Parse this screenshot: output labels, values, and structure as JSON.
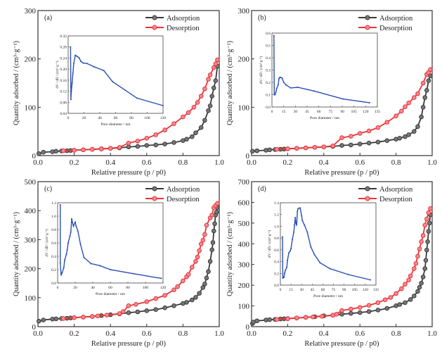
{
  "colors": {
    "adsorption": "#3a3a3a",
    "desorption": "#e8333a",
    "inset": "#2a4fb5"
  },
  "chart_data": [
    {
      "type": "line",
      "panel_label": "(a)",
      "xlabel": "Relative pressure (p / p0)",
      "ylabel": "Quantity adsorbed / (cm³·g⁻¹)",
      "xlim": [
        0,
        1
      ],
      "ylim": [
        0,
        300
      ],
      "xticks": [
        "0.0",
        "0.2",
        "0.4",
        "0.6",
        "0.8",
        "1.0"
      ],
      "yticks": [
        "0",
        "100",
        "200",
        "300"
      ],
      "legend": "top-right",
      "series": [
        {
          "name": "Adsorption",
          "x": [
            0.005,
            0.03,
            0.08,
            0.1,
            0.13,
            0.16,
            0.18,
            0.2,
            0.25,
            0.3,
            0.35,
            0.4,
            0.45,
            0.5,
            0.55,
            0.6,
            0.65,
            0.7,
            0.75,
            0.8,
            0.82,
            0.85,
            0.87,
            0.9,
            0.92,
            0.94,
            0.95,
            0.96,
            0.97,
            0.98,
            0.99
          ],
          "y": [
            4,
            7,
            8,
            9,
            9.5,
            10,
            10.5,
            11,
            12,
            13,
            14,
            15,
            16,
            18,
            19,
            21,
            22,
            24,
            27,
            31,
            34,
            39,
            47,
            58,
            73,
            93,
            103,
            123,
            140,
            155,
            185
          ]
        },
        {
          "name": "Desorption",
          "x": [
            0.14,
            0.2,
            0.25,
            0.3,
            0.35,
            0.4,
            0.45,
            0.5,
            0.55,
            0.6,
            0.65,
            0.7,
            0.75,
            0.8,
            0.83,
            0.86,
            0.88,
            0.9,
            0.92,
            0.94,
            0.95,
            0.97,
            0.98,
            0.99
          ],
          "y": [
            10,
            11,
            12,
            13,
            13.5,
            15,
            17,
            26,
            30,
            36,
            43,
            53,
            66,
            80,
            89,
            100,
            110,
            123,
            138,
            158,
            167,
            182,
            190,
            198
          ]
        }
      ],
      "inset": {
        "xlabel": "Pore diameter / nm",
        "ylabel": "dV / dD / (cm³·g⁻¹)",
        "xlim": [
          0,
          120
        ],
        "ylim": [
          0.04,
          0.32
        ],
        "xticks": [
          0,
          20,
          40,
          60,
          80,
          100,
          120
        ],
        "yticks": [
          0.04,
          0.08,
          0.12,
          0.16,
          0.2,
          0.24,
          0.28,
          0.32
        ],
        "ydigits": 2,
        "x": [
          3,
          3.5,
          4,
          5,
          6,
          7,
          9,
          10,
          12,
          14,
          16,
          19,
          24,
          33,
          45,
          56,
          87,
          120
        ],
        "y": [
          0.28,
          0.09,
          0.12,
          0.15,
          0.185,
          0.22,
          0.25,
          0.248,
          0.245,
          0.24,
          0.228,
          0.222,
          0.22,
          0.208,
          0.195,
          0.155,
          0.095,
          0.068
        ]
      }
    },
    {
      "type": "line",
      "panel_label": "(b)",
      "xlabel": "Relative pressure (p / p0)",
      "ylabel": "Quantity adsorbed / (cm³·g⁻¹)",
      "xlim": [
        0,
        1
      ],
      "ylim": [
        0,
        300
      ],
      "xticks": [
        "0.0",
        "0.2",
        "0.4",
        "0.6",
        "0.8",
        "1.0"
      ],
      "yticks": [
        "0",
        "100",
        "200",
        "300"
      ],
      "legend": "top-right",
      "series": [
        {
          "name": "Adsorption",
          "x": [
            0.005,
            0.03,
            0.08,
            0.1,
            0.13,
            0.16,
            0.18,
            0.2,
            0.25,
            0.3,
            0.35,
            0.4,
            0.45,
            0.5,
            0.55,
            0.6,
            0.65,
            0.7,
            0.75,
            0.8,
            0.82,
            0.85,
            0.87,
            0.9,
            0.92,
            0.94,
            0.95,
            0.96,
            0.97,
            0.98,
            0.99
          ],
          "y": [
            9,
            10,
            11,
            12,
            12.5,
            13,
            13.5,
            14,
            15,
            16,
            17,
            18,
            19,
            21,
            22,
            24,
            26,
            28,
            31,
            34,
            36,
            39,
            43,
            50,
            60,
            80,
            100,
            120,
            135,
            155,
            165
          ]
        },
        {
          "name": "Desorption",
          "x": [
            0.14,
            0.2,
            0.25,
            0.3,
            0.35,
            0.4,
            0.45,
            0.5,
            0.55,
            0.6,
            0.65,
            0.7,
            0.75,
            0.8,
            0.83,
            0.85,
            0.87,
            0.9,
            0.92,
            0.95,
            0.97,
            0.98,
            0.99
          ],
          "y": [
            13,
            14,
            15,
            16,
            17,
            18,
            20,
            37,
            40,
            46,
            51,
            58,
            69,
            82,
            92,
            101,
            109,
            120,
            128,
            150,
            168,
            172,
            178
          ]
        }
      ],
      "inset": {
        "xlabel": "Pore diameter / nm",
        "ylabel": "dV / dD / (cm³·g⁻¹)",
        "xlim": [
          0,
          135
        ],
        "ylim": [
          0,
          0.6
        ],
        "xticks": [
          0,
          15,
          30,
          45,
          60,
          75,
          90,
          105,
          120,
          135
        ],
        "yticks": [
          0,
          0.1,
          0.2,
          0.3,
          0.4,
          0.5,
          0.6
        ],
        "ydigits": 1,
        "x": [
          2.5,
          3,
          4,
          5,
          6,
          8,
          9,
          10,
          11,
          13,
          15,
          18,
          24,
          33,
          54,
          91,
          125
        ],
        "y": [
          0.58,
          0.1,
          0.1,
          0.12,
          0.15,
          0.18,
          0.23,
          0.24,
          0.24,
          0.235,
          0.2,
          0.18,
          0.155,
          0.16,
          0.13,
          0.065,
          0.035
        ]
      }
    },
    {
      "type": "line",
      "panel_label": "(c)",
      "xlabel": "Relative pressure (p / p0)",
      "ylabel": "Quantity adsorbed / (cm³·g⁻¹)",
      "xlim": [
        0,
        1
      ],
      "ylim": [
        0,
        500
      ],
      "xticks": [
        "0.0",
        "0.2",
        "0.4",
        "0.6",
        "0.8",
        "1.0"
      ],
      "yticks": [
        "0",
        "100",
        "200",
        "300",
        "400",
        "500"
      ],
      "legend": "top-right",
      "series": [
        {
          "name": "Adsorption",
          "x": [
            0.005,
            0.03,
            0.08,
            0.1,
            0.13,
            0.16,
            0.18,
            0.2,
            0.25,
            0.3,
            0.35,
            0.4,
            0.45,
            0.5,
            0.55,
            0.6,
            0.65,
            0.7,
            0.75,
            0.8,
            0.82,
            0.85,
            0.87,
            0.89,
            0.91,
            0.92,
            0.93,
            0.94,
            0.95,
            0.96,
            0.965,
            0.97,
            0.975,
            0.98,
            0.985,
            0.99
          ],
          "y": [
            19,
            23,
            26,
            27,
            28,
            29,
            30,
            31,
            33,
            35,
            38,
            41,
            44,
            48,
            51,
            55,
            59,
            65,
            72,
            80,
            84,
            92,
            101,
            115,
            135,
            147,
            168,
            190,
            225,
            265,
            290,
            330,
            355,
            385,
            395,
            410
          ]
        },
        {
          "name": "Desorption",
          "x": [
            0.14,
            0.2,
            0.25,
            0.3,
            0.33,
            0.38,
            0.45,
            0.47,
            0.5,
            0.54,
            0.6,
            0.65,
            0.7,
            0.75,
            0.77,
            0.8,
            0.82,
            0.83,
            0.85,
            0.87,
            0.88,
            0.89,
            0.9,
            0.91,
            0.92,
            0.93,
            0.95,
            0.96,
            0.97,
            0.98,
            0.99
          ],
          "y": [
            28,
            31,
            33,
            35,
            37,
            40,
            45,
            52,
            72,
            77,
            86,
            97,
            108,
            127,
            138,
            158,
            172,
            180,
            205,
            225,
            240,
            262,
            285,
            298,
            318,
            350,
            375,
            385,
            410,
            418,
            425
          ]
        }
      ],
      "inset": {
        "xlabel": "Pore diameter / nm",
        "ylabel": "dV / dD / (cm³·g⁻¹)",
        "xlim": [
          0,
          120
        ],
        "ylim": [
          0,
          1.2
        ],
        "xticks": [
          0,
          20,
          40,
          60,
          80,
          100,
          120
        ],
        "yticks": [
          0,
          0.2,
          0.4,
          0.6,
          0.8,
          1.0,
          1.2
        ],
        "ydigits": 1,
        "x": [
          3,
          3,
          4,
          5,
          7,
          8,
          10,
          11,
          12,
          14,
          15,
          16,
          18,
          20,
          21,
          23,
          26,
          30,
          38,
          48,
          60,
          86,
          118
        ],
        "y": [
          1.17,
          0.3,
          0.12,
          0.15,
          0.23,
          0.34,
          0.43,
          0.5,
          0.6,
          0.7,
          0.76,
          0.96,
          0.85,
          0.91,
          0.85,
          0.78,
          0.58,
          0.38,
          0.29,
          0.26,
          0.2,
          0.14,
          0.07
        ]
      }
    },
    {
      "type": "line",
      "panel_label": "(d)",
      "xlabel": "Relative pressure (p / p0)",
      "ylabel": "Quantity adsorbed / (cm³·g⁻¹)",
      "xlim": [
        0,
        1
      ],
      "ylim": [
        0,
        700
      ],
      "xticks": [
        "0.0",
        "0.2",
        "0.4",
        "0.6",
        "0.8",
        "1.0"
      ],
      "yticks": [
        "0",
        "100",
        "200",
        "300",
        "400",
        "500",
        "600",
        "700"
      ],
      "legend": "top-right",
      "series": [
        {
          "name": "Adsorption",
          "x": [
            0.005,
            0.01,
            0.03,
            0.08,
            0.1,
            0.13,
            0.16,
            0.18,
            0.2,
            0.25,
            0.3,
            0.35,
            0.4,
            0.45,
            0.5,
            0.55,
            0.6,
            0.65,
            0.7,
            0.75,
            0.8,
            0.82,
            0.85,
            0.88,
            0.9,
            0.92,
            0.93,
            0.94,
            0.95,
            0.96,
            0.965,
            0.97,
            0.975,
            0.98,
            0.985,
            0.99
          ],
          "y": [
            15,
            22,
            28,
            32,
            34,
            35,
            37,
            38,
            39,
            42,
            45,
            48,
            52,
            55,
            60,
            64,
            68,
            73,
            80,
            88,
            101,
            107,
            116,
            131,
            148,
            170,
            190,
            210,
            240,
            280,
            320,
            370,
            410,
            460,
            500,
            540
          ]
        },
        {
          "name": "Desorption",
          "x": [
            0.14,
            0.2,
            0.25,
            0.3,
            0.34,
            0.39,
            0.45,
            0.47,
            0.5,
            0.55,
            0.6,
            0.65,
            0.7,
            0.74,
            0.77,
            0.8,
            0.83,
            0.85,
            0.87,
            0.88,
            0.9,
            0.91,
            0.92,
            0.93,
            0.94,
            0.95,
            0.96,
            0.97,
            0.98,
            0.99
          ],
          "y": [
            35,
            38,
            42,
            45,
            47,
            50,
            55,
            60,
            78,
            85,
            93,
            103,
            116,
            130,
            141,
            160,
            183,
            205,
            225,
            245,
            280,
            305,
            340,
            375,
            410,
            440,
            490,
            520,
            550,
            570
          ]
        }
      ],
      "inset": {
        "xlabel": "Pore diameter / nm",
        "ylabel": "dV / dD / (cm³·g⁻¹)",
        "xlim": [
          0,
          135
        ],
        "ylim": [
          0,
          1.4
        ],
        "xticks": [
          0,
          15,
          30,
          45,
          60,
          75,
          90,
          105,
          120,
          135
        ],
        "yticks": [
          0,
          0.2,
          0.4,
          0.6,
          0.8,
          1.0,
          1.2,
          1.4
        ],
        "ydigits": 1,
        "x": [
          3,
          3.5,
          5,
          6,
          7,
          9,
          10,
          12,
          14,
          15,
          17,
          19,
          20,
          21,
          22,
          23,
          24,
          25,
          27,
          28,
          30,
          31,
          34,
          38,
          43,
          48,
          56,
          70,
          96,
          127
        ],
        "y": [
          0.82,
          0.12,
          0.13,
          0.2,
          0.25,
          0.3,
          0.42,
          0.55,
          0.58,
          0.62,
          0.78,
          0.9,
          1.02,
          1.15,
          1.05,
          1.02,
          1.25,
          1.3,
          1.31,
          1.31,
          1.18,
          1.1,
          1.02,
          0.9,
          0.65,
          0.52,
          0.38,
          0.28,
          0.18,
          0.09
        ]
      }
    }
  ]
}
